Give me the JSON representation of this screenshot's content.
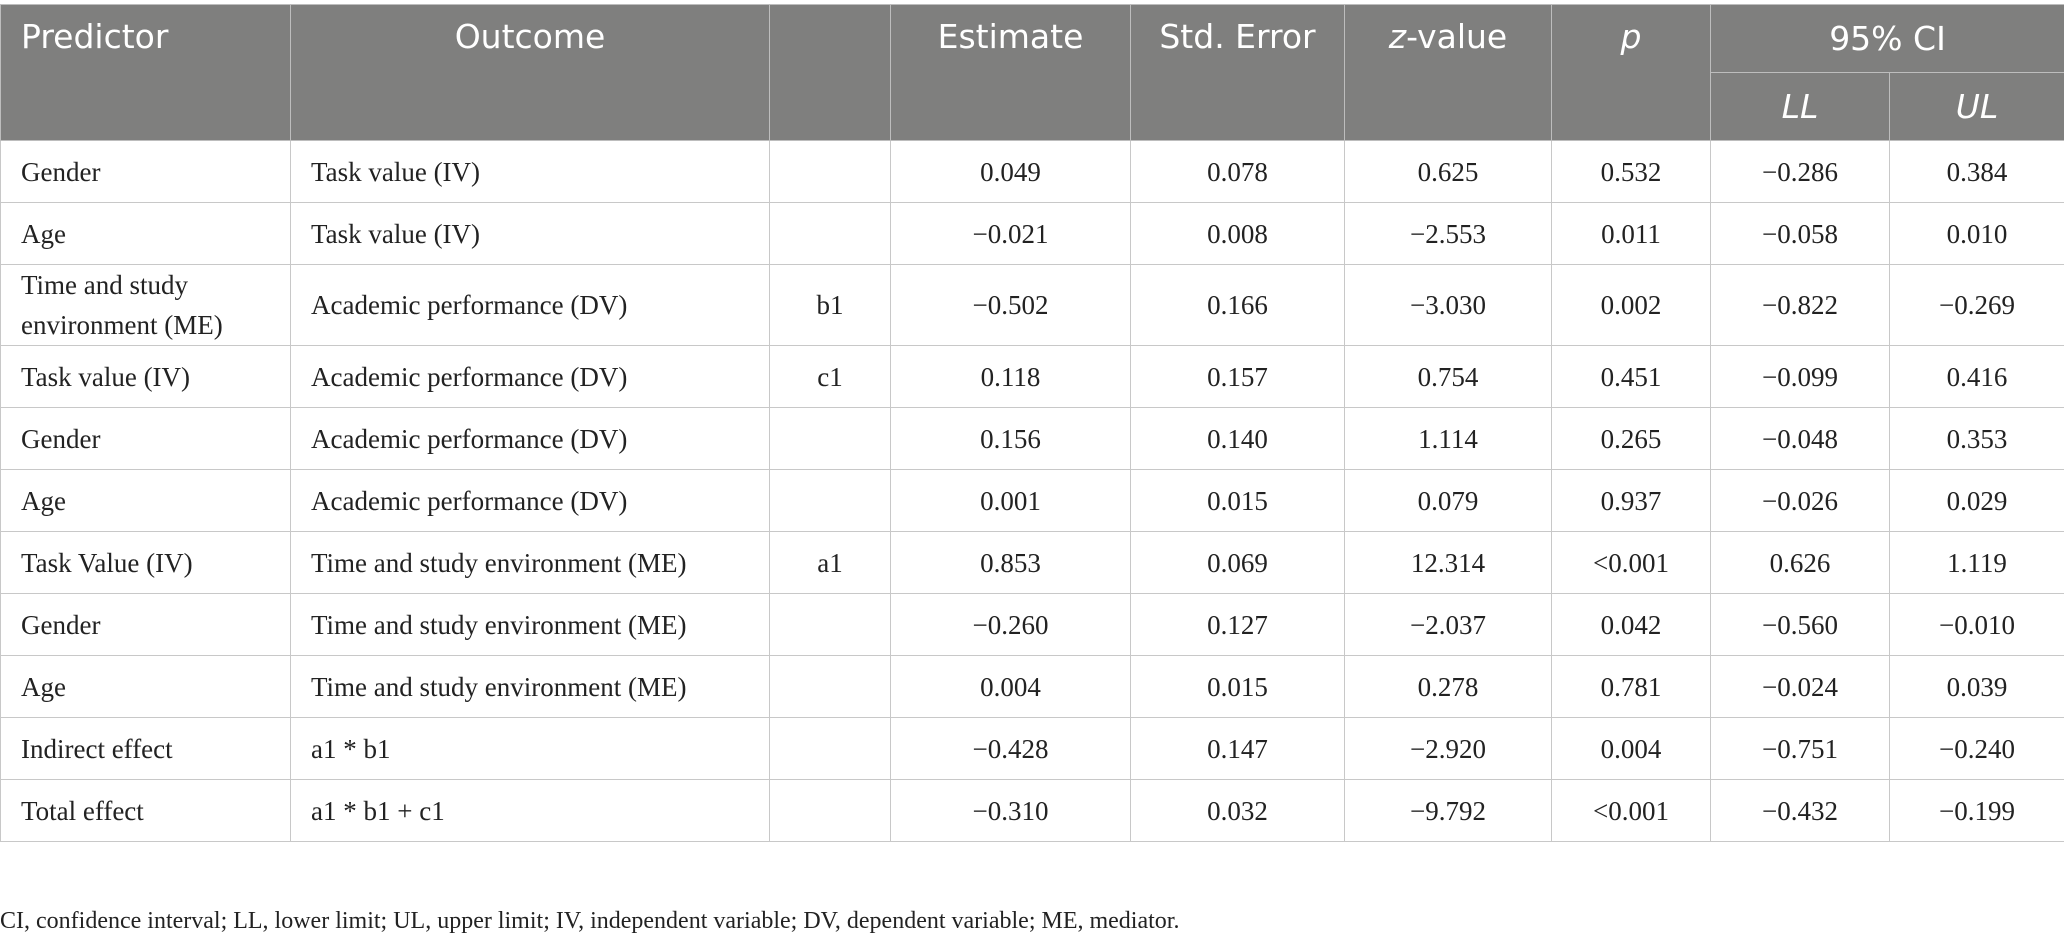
{
  "table": {
    "header": {
      "predictor": "Predictor",
      "outcome": "Outcome",
      "estimate": "Estimate",
      "std_error": "Std. Error",
      "z_value": {
        "italic": "z",
        "rest": "-value"
      },
      "p": "p",
      "ci": "95% CI",
      "ll": "LL",
      "ul": "UL"
    },
    "rows": [
      {
        "predictor": "Gender",
        "outcome": "Task value (IV)",
        "estimate": "0.049",
        "se": "0.078",
        "z": "0.625",
        "p": "0.532",
        "ll": "−0.286",
        "ul": "0.384"
      },
      {
        "predictor": "Age",
        "outcome": "Task value (IV)",
        "estimate": "−0.021",
        "se": "0.008",
        "z": "−2.553",
        "p": "0.011",
        "ll": "−0.058",
        "ul": "0.010"
      },
      {
        "predictor": "Time and study environment (ME)",
        "outcome": "Academic performance (DV)",
        "path": "b1",
        "estimate": "−0.502",
        "se": "0.166",
        "z": "−3.030",
        "p": "0.002",
        "ll": "−0.822",
        "ul": "−0.269"
      },
      {
        "predictor": "Task value (IV)",
        "outcome": "Academic performance (DV)",
        "path": "c1",
        "estimate": "0.118",
        "se": "0.157",
        "z": "0.754",
        "p": "0.451",
        "ll": "−0.099",
        "ul": "0.416"
      },
      {
        "predictor": "Gender",
        "outcome": "Academic performance (DV)",
        "estimate": "0.156",
        "se": "0.140",
        "z": "1.114",
        "p": "0.265",
        "ll": "−0.048",
        "ul": "0.353"
      },
      {
        "predictor": "Age",
        "outcome": "Academic performance (DV)",
        "estimate": "0.001",
        "se": "0.015",
        "z": "0.079",
        "p": "0.937",
        "ll": "−0.026",
        "ul": "0.029"
      },
      {
        "predictor": "Task Value (IV)",
        "outcome": "Time and study environment (ME)",
        "path": "a1",
        "estimate": "0.853",
        "se": "0.069",
        "z": "12.314",
        "p": "<0.001",
        "ll": "0.626",
        "ul": "1.119"
      },
      {
        "predictor": "Gender",
        "outcome": "Time and study environment (ME)",
        "estimate": "−0.260",
        "se": "0.127",
        "z": "−2.037",
        "p": "0.042",
        "ll": "−0.560",
        "ul": "−0.010"
      },
      {
        "predictor": "Age",
        "outcome": "Time and study environment (ME)",
        "estimate": "0.004",
        "se": "0.015",
        "z": "0.278",
        "p": "0.781",
        "ll": "−0.024",
        "ul": "0.039"
      },
      {
        "predictor": "Indirect effect",
        "outcome": "a1 * b1",
        "estimate": "−0.428",
        "se": "0.147",
        "z": "−2.920",
        "p": "0.004",
        "ll": "−0.751",
        "ul": "−0.240"
      },
      {
        "predictor": "Total effect",
        "outcome": "a1 * b1 + c1",
        "estimate": "−0.310",
        "se": "0.032",
        "z": "−9.792",
        "p": "<0.001",
        "ll": "−0.432",
        "ul": "−0.199"
      }
    ]
  },
  "footnote": "CI, confidence interval; LL, lower limit; UL, upper limit; IV, independent variable; DV, dependent variable; ME, mediator."
}
